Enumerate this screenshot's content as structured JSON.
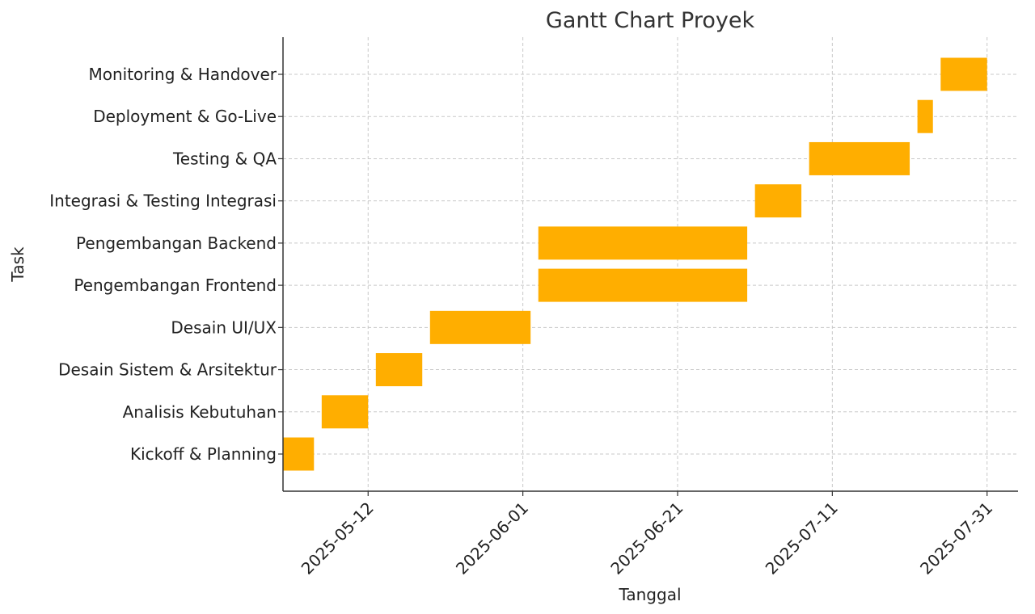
{
  "chart_data": {
    "type": "gantt",
    "title": "Gantt Chart Proyek",
    "xlabel": "Tanggal",
    "ylabel": "Task",
    "x_axis": {
      "type": "date",
      "range": [
        "2025-05-01",
        "2025-08-04"
      ],
      "ticks": [
        "2025-05-12",
        "2025-06-01",
        "2025-06-21",
        "2025-07-11",
        "2025-07-31"
      ]
    },
    "grid": true,
    "bar_color": "#FFAE00",
    "tasks": [
      {
        "name": "Kickoff & Planning",
        "start": "2025-05-01",
        "end": "2025-05-05"
      },
      {
        "name": "Analisis Kebutuhan",
        "start": "2025-05-06",
        "end": "2025-05-12"
      },
      {
        "name": "Desain Sistem & Arsitektur",
        "start": "2025-05-13",
        "end": "2025-05-19"
      },
      {
        "name": "Desain UI/UX",
        "start": "2025-05-20",
        "end": "2025-06-02"
      },
      {
        "name": "Pengembangan Frontend",
        "start": "2025-06-03",
        "end": "2025-06-30"
      },
      {
        "name": "Pengembangan Backend",
        "start": "2025-06-03",
        "end": "2025-06-30"
      },
      {
        "name": "Integrasi & Testing Integrasi",
        "start": "2025-07-01",
        "end": "2025-07-07"
      },
      {
        "name": "Testing & QA",
        "start": "2025-07-08",
        "end": "2025-07-21"
      },
      {
        "name": "Deployment & Go-Live",
        "start": "2025-07-22",
        "end": "2025-07-24"
      },
      {
        "name": "Monitoring & Handover",
        "start": "2025-07-25",
        "end": "2025-07-31"
      }
    ]
  }
}
